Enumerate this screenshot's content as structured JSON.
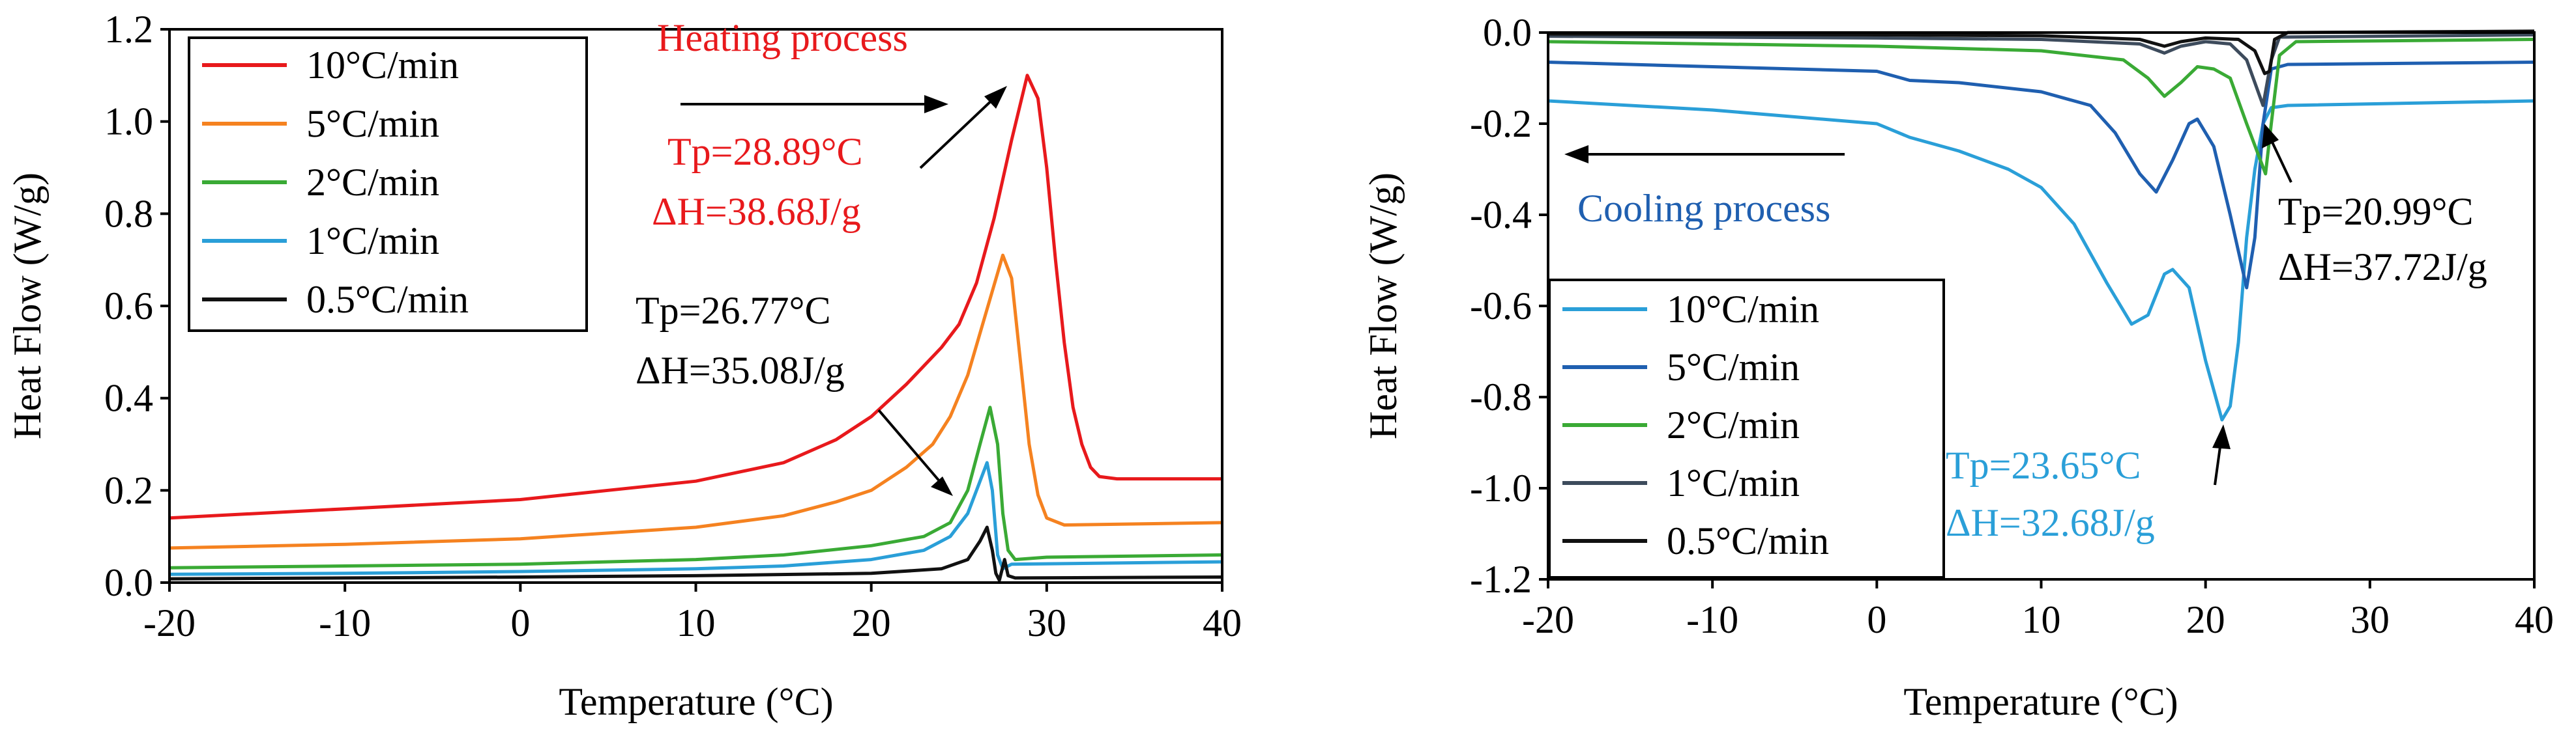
{
  "chart_data": [
    {
      "type": "line",
      "title": "",
      "xlabel": "Temperature (°C)",
      "ylabel": "Heat Flow (W/g)",
      "xlim": [
        -20,
        40
      ],
      "ylim": [
        0,
        1.2
      ],
      "x_ticks": [
        "-20",
        "-10",
        "0",
        "10",
        "20",
        "30",
        "40"
      ],
      "y_ticks": [
        "0.0",
        "0.2",
        "0.4",
        "0.6",
        "0.8",
        "1.0",
        "1.2"
      ],
      "grid": false,
      "legend_position": "top-left",
      "series": [
        {
          "name": "10°C/min",
          "color": "#e8191c",
          "points": [
            [
              -20,
              0.14
            ],
            [
              -10,
              0.16
            ],
            [
              0,
              0.18
            ],
            [
              5,
              0.2
            ],
            [
              10,
              0.22
            ],
            [
              15,
              0.26
            ],
            [
              18,
              0.31
            ],
            [
              20,
              0.36
            ],
            [
              22,
              0.43
            ],
            [
              24,
              0.51
            ],
            [
              25,
              0.56
            ],
            [
              26,
              0.65
            ],
            [
              27,
              0.79
            ],
            [
              28,
              0.96
            ],
            [
              28.89,
              1.1
            ],
            [
              29.5,
              1.05
            ],
            [
              30,
              0.9
            ],
            [
              30.5,
              0.7
            ],
            [
              31,
              0.52
            ],
            [
              31.5,
              0.38
            ],
            [
              32,
              0.3
            ],
            [
              32.5,
              0.25
            ],
            [
              33,
              0.23
            ],
            [
              34,
              0.225
            ],
            [
              40,
              0.225
            ]
          ]
        },
        {
          "name": "5°C/min",
          "color": "#f58220",
          "points": [
            [
              -20,
              0.075
            ],
            [
              -10,
              0.083
            ],
            [
              0,
              0.095
            ],
            [
              10,
              0.12
            ],
            [
              15,
              0.145
            ],
            [
              18,
              0.175
            ],
            [
              20,
              0.2
            ],
            [
              22,
              0.25
            ],
            [
              23.5,
              0.3
            ],
            [
              24.5,
              0.36
            ],
            [
              25.5,
              0.45
            ],
            [
              26.5,
              0.58
            ],
            [
              27.5,
              0.71
            ],
            [
              28,
              0.66
            ],
            [
              28.5,
              0.48
            ],
            [
              29,
              0.3
            ],
            [
              29.5,
              0.19
            ],
            [
              30,
              0.14
            ],
            [
              31,
              0.125
            ],
            [
              40,
              0.13
            ]
          ]
        },
        {
          "name": "2°C/min",
          "color": "#3aaa35",
          "points": [
            [
              -20,
              0.032
            ],
            [
              -10,
              0.036
            ],
            [
              0,
              0.04
            ],
            [
              10,
              0.05
            ],
            [
              15,
              0.06
            ],
            [
              20,
              0.08
            ],
            [
              23,
              0.1
            ],
            [
              24.5,
              0.13
            ],
            [
              25.5,
              0.2
            ],
            [
              26.2,
              0.3
            ],
            [
              26.77,
              0.38
            ],
            [
              27.2,
              0.3
            ],
            [
              27.5,
              0.15
            ],
            [
              27.8,
              0.07
            ],
            [
              28.2,
              0.05
            ],
            [
              30,
              0.055
            ],
            [
              40,
              0.06
            ]
          ]
        },
        {
          "name": "1°C/min",
          "color": "#2a9fd8",
          "points": [
            [
              -20,
              0.018
            ],
            [
              -10,
              0.02
            ],
            [
              0,
              0.024
            ],
            [
              10,
              0.03
            ],
            [
              15,
              0.036
            ],
            [
              20,
              0.05
            ],
            [
              23,
              0.07
            ],
            [
              24.5,
              0.1
            ],
            [
              25.5,
              0.15
            ],
            [
              26.3,
              0.23
            ],
            [
              26.6,
              0.26
            ],
            [
              26.9,
              0.2
            ],
            [
              27.2,
              0.06
            ],
            [
              27.5,
              0.03
            ],
            [
              28,
              0.04
            ],
            [
              40,
              0.045
            ]
          ]
        },
        {
          "name": "0.5°C/min",
          "color": "#111111",
          "points": [
            [
              -20,
              0.008
            ],
            [
              -10,
              0.01
            ],
            [
              0,
              0.012
            ],
            [
              10,
              0.015
            ],
            [
              20,
              0.02
            ],
            [
              24,
              0.03
            ],
            [
              25.5,
              0.05
            ],
            [
              26.2,
              0.09
            ],
            [
              26.6,
              0.12
            ],
            [
              26.9,
              0.07
            ],
            [
              27.1,
              0.02
            ],
            [
              27.3,
              0.005
            ],
            [
              27.6,
              0.05
            ],
            [
              27.8,
              0.015
            ],
            [
              28.2,
              0.01
            ],
            [
              40,
              0.012
            ]
          ]
        }
      ],
      "annotations": [
        {
          "text": "Heating process",
          "color": "#e8191c"
        },
        {
          "text": "Tp=28.89°C",
          "color": "#e8191c"
        },
        {
          "text": "ΔH=38.68J/g",
          "color": "#e8191c"
        },
        {
          "text": "Tp=26.77°C",
          "color": "#000000"
        },
        {
          "text": "ΔH=35.08J/g",
          "color": "#000000"
        }
      ]
    },
    {
      "type": "line",
      "title": "",
      "xlabel": "Temperature (°C)",
      "ylabel": "Heat Flow (W/g)",
      "xlim": [
        -20,
        40
      ],
      "ylim": [
        -1.2,
        0.0
      ],
      "x_ticks": [
        "-20",
        "-10",
        "0",
        "10",
        "20",
        "30",
        "40"
      ],
      "y_ticks": [
        "0.0",
        "-0.2",
        "-0.4",
        "-0.6",
        "-0.8",
        "-1.0",
        "-1.2"
      ],
      "grid": false,
      "legend_position": "bottom-left",
      "series": [
        {
          "name": "10°C/min",
          "color": "#2a9fd8",
          "points": [
            [
              -20,
              -0.15
            ],
            [
              -10,
              -0.17
            ],
            [
              0,
              -0.2
            ],
            [
              2,
              -0.23
            ],
            [
              5,
              -0.26
            ],
            [
              8,
              -0.3
            ],
            [
              10,
              -0.34
            ],
            [
              12,
              -0.42
            ],
            [
              14,
              -0.55
            ],
            [
              15.5,
              -0.64
            ],
            [
              16.5,
              -0.62
            ],
            [
              17.5,
              -0.53
            ],
            [
              18,
              -0.52
            ],
            [
              19,
              -0.56
            ],
            [
              20,
              -0.72
            ],
            [
              21,
              -0.85
            ],
            [
              21.5,
              -0.82
            ],
            [
              22,
              -0.68
            ],
            [
              22.5,
              -0.45
            ],
            [
              23,
              -0.3
            ],
            [
              23.5,
              -0.2
            ],
            [
              24,
              -0.165
            ],
            [
              25,
              -0.16
            ],
            [
              40,
              -0.15
            ]
          ]
        },
        {
          "name": "5°C/min",
          "color": "#1f5fb0",
          "points": [
            [
              -20,
              -0.065
            ],
            [
              -10,
              -0.075
            ],
            [
              0,
              -0.085
            ],
            [
              2,
              -0.105
            ],
            [
              5,
              -0.11
            ],
            [
              10,
              -0.13
            ],
            [
              13,
              -0.16
            ],
            [
              14.5,
              -0.22
            ],
            [
              16,
              -0.31
            ],
            [
              17,
              -0.35
            ],
            [
              18,
              -0.28
            ],
            [
              19,
              -0.2
            ],
            [
              19.5,
              -0.19
            ],
            [
              20.5,
              -0.25
            ],
            [
              21.5,
              -0.4
            ],
            [
              22.5,
              -0.56
            ],
            [
              23,
              -0.45
            ],
            [
              23.5,
              -0.2
            ],
            [
              24,
              -0.08
            ],
            [
              25,
              -0.07
            ],
            [
              40,
              -0.065
            ]
          ]
        },
        {
          "name": "2°C/min",
          "color": "#3aaa35",
          "points": [
            [
              -20,
              -0.02
            ],
            [
              -10,
              -0.025
            ],
            [
              0,
              -0.03
            ],
            [
              10,
              -0.04
            ],
            [
              15,
              -0.06
            ],
            [
              16.5,
              -0.1
            ],
            [
              17.5,
              -0.14
            ],
            [
              18.5,
              -0.11
            ],
            [
              19.5,
              -0.075
            ],
            [
              20.5,
              -0.08
            ],
            [
              21.5,
              -0.1
            ],
            [
              22.5,
              -0.2
            ],
            [
              23.65,
              -0.31
            ],
            [
              24,
              -0.2
            ],
            [
              24.5,
              -0.05
            ],
            [
              25.5,
              -0.02
            ],
            [
              40,
              -0.015
            ]
          ]
        },
        {
          "name": "1°C/min",
          "color": "#3d4b5c",
          "points": [
            [
              -20,
              -0.008
            ],
            [
              -10,
              -0.01
            ],
            [
              0,
              -0.012
            ],
            [
              10,
              -0.015
            ],
            [
              16,
              -0.025
            ],
            [
              17.5,
              -0.045
            ],
            [
              18.5,
              -0.03
            ],
            [
              20,
              -0.02
            ],
            [
              21.5,
              -0.025
            ],
            [
              22.5,
              -0.06
            ],
            [
              23.5,
              -0.16
            ],
            [
              24,
              -0.06
            ],
            [
              24.5,
              -0.01
            ],
            [
              40,
              -0.005
            ]
          ]
        },
        {
          "name": "0.5°C/min",
          "color": "#111111",
          "points": [
            [
              -20,
              -0.003
            ],
            [
              -10,
              -0.004
            ],
            [
              0,
              -0.005
            ],
            [
              10,
              -0.007
            ],
            [
              16,
              -0.015
            ],
            [
              17.5,
              -0.03
            ],
            [
              18.5,
              -0.02
            ],
            [
              20,
              -0.012
            ],
            [
              22,
              -0.015
            ],
            [
              23,
              -0.04
            ],
            [
              23.6,
              -0.09
            ],
            [
              23.9,
              -0.085
            ],
            [
              24.2,
              -0.015
            ],
            [
              25,
              0.0
            ],
            [
              40,
              0.003
            ]
          ]
        }
      ],
      "annotations": [
        {
          "text": "Cooling process",
          "color": "#1f5fb0"
        },
        {
          "text": "Tp=20.99°C",
          "color": "#000000"
        },
        {
          "text": "ΔH=37.72J/g",
          "color": "#000000"
        },
        {
          "text": "Tp=23.65°C",
          "color": "#2a9fd8"
        },
        {
          "text": "ΔH=32.68J/g",
          "color": "#2a9fd8"
        }
      ]
    }
  ]
}
